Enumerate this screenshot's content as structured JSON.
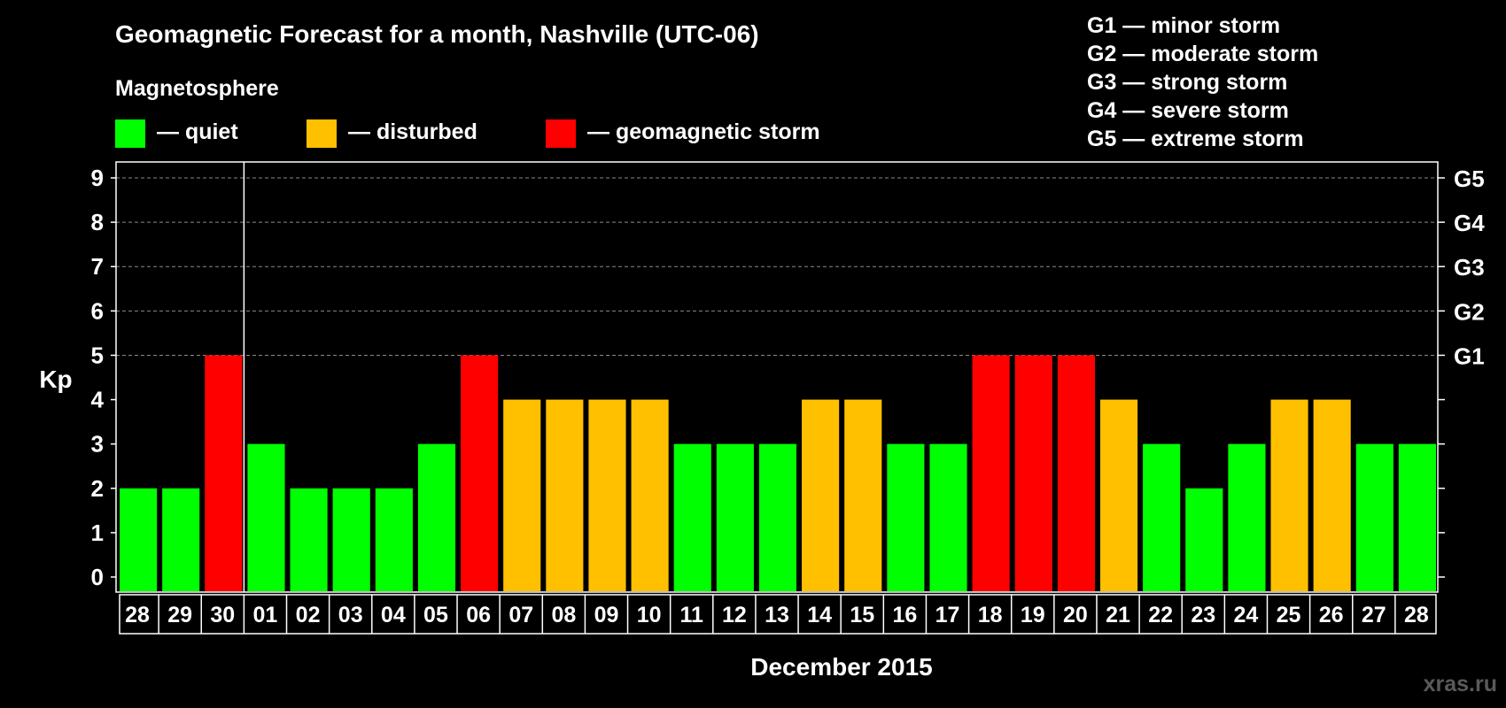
{
  "header": {
    "title": "Geomagnetic Forecast for a month, Nashville (UTC-06)",
    "subtitle": "Magnetosphere"
  },
  "legend": {
    "items": [
      {
        "label": "— quiet",
        "color": "#00ff00"
      },
      {
        "label": "— disturbed",
        "color": "#ffc000"
      },
      {
        "label": "— geomagnetic storm",
        "color": "#ff0000"
      }
    ]
  },
  "storm_scale": [
    "G1 — minor storm",
    "G2 — moderate storm",
    "G3 — strong storm",
    "G4 — severe storm",
    "G5 — extreme storm"
  ],
  "watermark": "xras.ru",
  "chart_data": {
    "type": "bar",
    "title": "Geomagnetic Forecast for a month, Nashville (UTC-06)",
    "xlabel": "December 2015",
    "ylabel": "Kp",
    "ylim": [
      0,
      9
    ],
    "yticks": [
      "0",
      "1",
      "2",
      "3",
      "4",
      "5",
      "6",
      "7",
      "8",
      "9"
    ],
    "right_ticks": [
      {
        "value": 5,
        "label": "G1"
      },
      {
        "value": 6,
        "label": "G2"
      },
      {
        "value": 7,
        "label": "G3"
      },
      {
        "value": 8,
        "label": "G4"
      },
      {
        "value": 9,
        "label": "G5"
      }
    ],
    "grid": true,
    "month_divider_after_index": 2,
    "categories": [
      "28",
      "29",
      "30",
      "01",
      "02",
      "03",
      "04",
      "05",
      "06",
      "07",
      "08",
      "09",
      "10",
      "11",
      "12",
      "13",
      "14",
      "15",
      "16",
      "17",
      "18",
      "19",
      "20",
      "21",
      "22",
      "23",
      "24",
      "25",
      "26",
      "27",
      "28"
    ],
    "values": [
      2,
      2,
      5,
      3,
      2,
      2,
      2,
      3,
      5,
      4,
      4,
      4,
      4,
      3,
      3,
      3,
      4,
      4,
      3,
      3,
      5,
      5,
      5,
      4,
      3,
      2,
      3,
      4,
      4,
      3,
      3
    ],
    "level_colors": {
      "quiet": "#00ff00",
      "disturbed": "#ffc000",
      "storm": "#ff0000"
    }
  }
}
